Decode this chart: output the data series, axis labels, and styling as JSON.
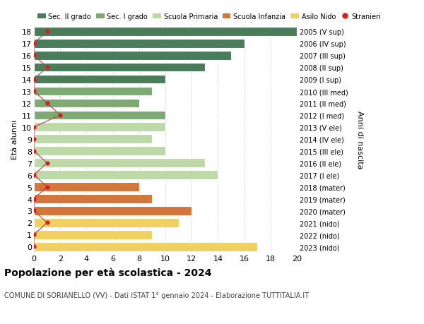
{
  "ages": [
    18,
    17,
    16,
    15,
    14,
    13,
    12,
    11,
    10,
    9,
    8,
    7,
    6,
    5,
    4,
    3,
    2,
    1,
    0
  ],
  "bar_values": [
    20,
    16,
    15,
    13,
    10,
    9,
    8,
    10,
    10,
    9,
    10,
    13,
    14,
    8,
    9,
    12,
    11,
    9,
    17
  ],
  "stranieri_values": [
    1,
    0,
    0,
    1,
    0,
    0,
    1,
    2,
    0,
    0,
    0,
    1,
    0,
    1,
    0,
    0,
    1,
    0,
    0
  ],
  "right_labels": [
    "2005 (V sup)",
    "2006 (IV sup)",
    "2007 (III sup)",
    "2008 (II sup)",
    "2009 (I sup)",
    "2010 (III med)",
    "2011 (II med)",
    "2012 (I med)",
    "2013 (V ele)",
    "2014 (IV ele)",
    "2015 (III ele)",
    "2016 (II ele)",
    "2017 (I ele)",
    "2018 (mater)",
    "2019 (mater)",
    "2020 (mater)",
    "2021 (nido)",
    "2022 (nido)",
    "2023 (nido)"
  ],
  "bar_colors": [
    "#4a7c59",
    "#4a7c59",
    "#4a7c59",
    "#4a7c59",
    "#4a7c59",
    "#7daa72",
    "#7daa72",
    "#7daa72",
    "#bdd9a8",
    "#bdd9a8",
    "#bdd9a8",
    "#bdd9a8",
    "#bdd9a8",
    "#d4763b",
    "#d4763b",
    "#d4763b",
    "#f0d060",
    "#f0d060",
    "#f0d060"
  ],
  "legend_labels": [
    "Sec. II grado",
    "Sec. I grado",
    "Scuola Primaria",
    "Scuola Infanzia",
    "Asilo Nido",
    "Stranieri"
  ],
  "legend_colors": [
    "#4a7c59",
    "#7daa72",
    "#bdd9a8",
    "#d4763b",
    "#f0d060",
    "#cc2222"
  ],
  "title": "Popolazione per età scolastica - 2024",
  "subtitle": "COMUNE DI SORIANELLO (VV) - Dati ISTAT 1° gennaio 2024 - Elaborazione TUTTITALIA.IT",
  "ylabel": "Età alunni",
  "right_ylabel": "Anni di nascita",
  "xlim": [
    0,
    20
  ],
  "xticks": [
    0,
    2,
    4,
    6,
    8,
    10,
    12,
    14,
    16,
    18,
    20
  ],
  "background_color": "#ffffff",
  "stranieri_color": "#cc2222",
  "stranieri_line_color": "#aa4444"
}
